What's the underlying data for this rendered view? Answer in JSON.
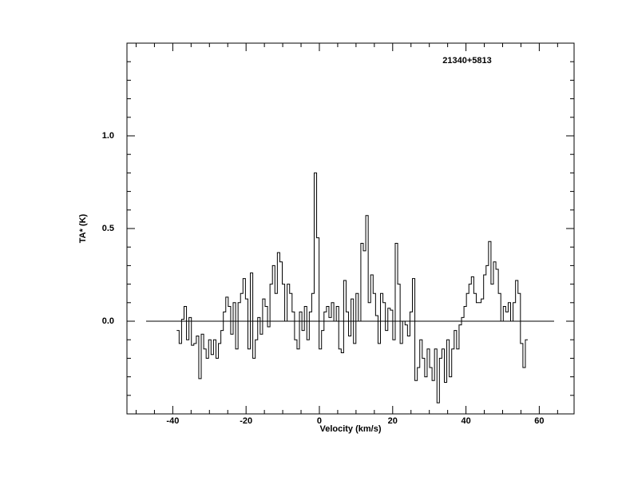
{
  "chart_data": {
    "type": "step",
    "title": "21340+5813",
    "xlabel": "Velocity (km/s)",
    "ylabel": "TA* (K)",
    "color": "#000000",
    "xlim": [
      -52.5,
      69.5
    ],
    "ylim": [
      -0.5,
      1.5
    ],
    "xticks": [
      -40,
      -20,
      0,
      20,
      40,
      60
    ],
    "yticks": [
      {
        "value": 0.0,
        "label": "0.0"
      },
      {
        "value": 0.5,
        "label": "0.5"
      },
      {
        "value": 1.0,
        "label": "1.0"
      }
    ],
    "xminor_ticks": [
      -50,
      -45,
      -35,
      -30,
      -25,
      -15,
      -10,
      -5,
      5,
      10,
      15,
      25,
      30,
      35,
      45,
      50,
      55,
      65
    ],
    "yminor_ticks": [
      -0.4,
      -0.3,
      -0.2,
      -0.1,
      0.1,
      0.2,
      0.3,
      0.4,
      0.6,
      0.7,
      0.8,
      0.9,
      1.1,
      1.2,
      1.3,
      1.4
    ],
    "zero_line": true,
    "x": [
      -38.6,
      -37.93,
      -37.26,
      -36.59,
      -35.92,
      -35.25,
      -34.58,
      -33.91,
      -33.24,
      -32.57,
      -31.9,
      -31.23,
      -30.56,
      -29.89,
      -29.22,
      -28.55,
      -27.88,
      -27.21,
      -26.54,
      -25.87,
      -25.2,
      -24.53,
      -23.86,
      -23.19,
      -22.52,
      -21.85,
      -21.18,
      -20.51,
      -19.84,
      -19.17,
      -18.5,
      -17.83,
      -17.16,
      -16.49,
      -15.82,
      -15.15,
      -14.48,
      -13.81,
      -13.14,
      -12.47,
      -11.8,
      -11.13,
      -10.46,
      -9.79,
      -9.12,
      -8.45,
      -7.78,
      -7.11,
      -6.44,
      -5.77,
      -5.1,
      -4.43,
      -3.76,
      -3.09,
      -2.42,
      -1.75,
      -1.08,
      -0.41,
      0.26,
      0.93,
      1.6,
      2.27,
      2.94,
      3.61,
      4.28,
      4.95,
      5.62,
      6.29,
      6.96,
      7.63,
      8.3,
      8.97,
      9.64,
      10.31,
      10.98,
      11.65,
      12.32,
      12.99,
      13.66,
      14.33,
      15.0,
      15.67,
      16.34,
      17.01,
      17.68,
      18.35,
      19.02,
      19.69,
      20.36,
      21.03,
      21.7,
      22.37,
      23.04,
      23.71,
      24.38,
      25.05,
      25.72,
      26.39,
      27.06,
      27.73,
      28.4,
      29.07,
      29.74,
      30.41,
      31.08,
      31.75,
      32.42,
      33.09,
      33.76,
      34.43,
      35.1,
      35.77,
      36.44,
      37.11,
      37.78,
      38.45,
      39.12,
      39.79,
      40.46,
      41.13,
      41.8,
      42.47,
      43.14,
      43.81,
      44.48,
      45.15,
      45.82,
      46.49,
      47.16,
      47.83,
      48.5,
      49.17,
      49.84,
      50.51,
      51.18,
      51.85,
      52.52,
      53.19,
      53.86,
      54.53,
      55.2,
      55.87,
      56.54
    ],
    "values": [
      -0.05,
      -0.12,
      0.01,
      0.08,
      -0.1,
      0.02,
      -0.13,
      -0.12,
      -0.08,
      -0.31,
      -0.07,
      -0.15,
      -0.2,
      -0.1,
      -0.18,
      -0.1,
      -0.2,
      -0.12,
      -0.05,
      0.05,
      0.13,
      0.08,
      -0.07,
      0.1,
      -0.15,
      0.1,
      0.15,
      0.23,
      0.12,
      -0.15,
      0.26,
      -0.2,
      -0.1,
      0.02,
      -0.07,
      0.12,
      0.08,
      -0.03,
      0.2,
      0.3,
      0.15,
      0.37,
      0.32,
      0.2,
      0.0,
      0.2,
      0.15,
      0.05,
      -0.1,
      -0.15,
      0.05,
      -0.05,
      0.08,
      -0.1,
      0.05,
      0.15,
      0.8,
      0.45,
      -0.15,
      -0.05,
      0.05,
      0.08,
      0.02,
      0.1,
      0.0,
      0.08,
      -0.15,
      -0.17,
      0.22,
      0.05,
      -0.08,
      0.12,
      -0.12,
      0.15,
      0.0,
      0.42,
      0.38,
      0.57,
      0.1,
      0.25,
      0.15,
      0.03,
      -0.12,
      0.15,
      0.1,
      -0.05,
      0.07,
      0.06,
      -0.1,
      0.42,
      0.2,
      -0.12,
      0.0,
      -0.02,
      -0.08,
      0.05,
      0.23,
      -0.32,
      -0.25,
      -0.1,
      -0.2,
      -0.3,
      -0.15,
      -0.25,
      -0.32,
      -0.15,
      -0.44,
      -0.2,
      -0.15,
      -0.33,
      -0.1,
      -0.3,
      -0.15,
      -0.05,
      -0.15,
      -0.02,
      0.02,
      0.08,
      0.15,
      0.2,
      0.24,
      0.15,
      0.1,
      0.1,
      0.12,
      0.25,
      0.3,
      0.43,
      0.2,
      0.32,
      0.28,
      0.15,
      0.0,
      0.08,
      0.05,
      0.1,
      0.0,
      0.1,
      0.22,
      0.15,
      -0.12,
      -0.25,
      -0.1
    ]
  }
}
